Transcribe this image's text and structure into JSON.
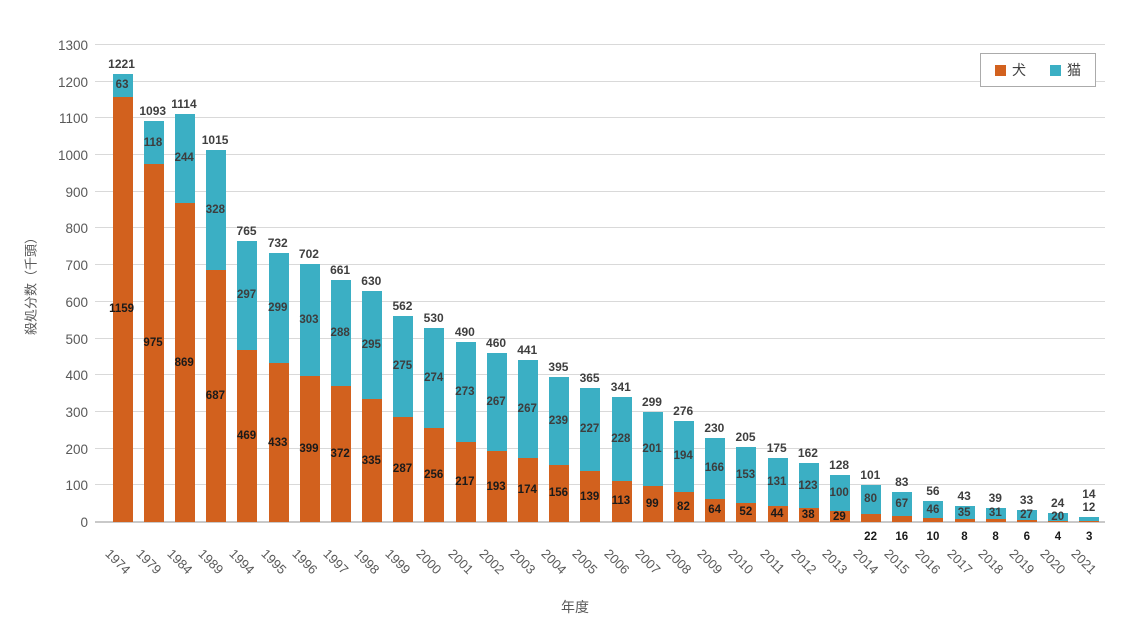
{
  "chart_data": {
    "type": "bar",
    "stacked": true,
    "title": "",
    "xlabel": "年度",
    "ylabel": "殺処分数（千頭）",
    "ylim": [
      0,
      1300
    ],
    "ytick_step": 100,
    "grid": true,
    "legend_position": "top-right",
    "categories": [
      "1974",
      "1979",
      "1984",
      "1989",
      "1994",
      "1995",
      "1996",
      "1997",
      "1998",
      "1999",
      "2000",
      "2001",
      "2002",
      "2003",
      "2004",
      "2005",
      "2006",
      "2007",
      "2008",
      "2009",
      "2010",
      "2011",
      "2012",
      "2013",
      "2014",
      "2015",
      "2016",
      "2017",
      "2018",
      "2019",
      "2020",
      "2021"
    ],
    "series": [
      {
        "name": "犬",
        "color": "#D2611E",
        "values": [
          1159,
          975,
          869,
          687,
          469,
          433,
          399,
          372,
          335,
          287,
          256,
          217,
          193,
          174,
          156,
          139,
          113,
          99,
          82,
          64,
          52,
          44,
          38,
          29,
          22,
          16,
          10,
          8,
          8,
          6,
          4,
          3
        ]
      },
      {
        "name": "猫",
        "color": "#3BAFC4",
        "values": [
          63,
          118,
          244,
          328,
          297,
          299,
          303,
          288,
          295,
          275,
          274,
          273,
          267,
          267,
          239,
          227,
          228,
          201,
          194,
          166,
          153,
          131,
          123,
          100,
          80,
          67,
          46,
          35,
          31,
          27,
          20,
          12
        ]
      }
    ],
    "totals": [
      1221,
      1093,
      1114,
      1015,
      765,
      732,
      702,
      661,
      630,
      562,
      530,
      490,
      460,
      441,
      395,
      365,
      341,
      299,
      276,
      230,
      205,
      175,
      162,
      128,
      101,
      83,
      56,
      43,
      39,
      33,
      24,
      14
    ]
  }
}
